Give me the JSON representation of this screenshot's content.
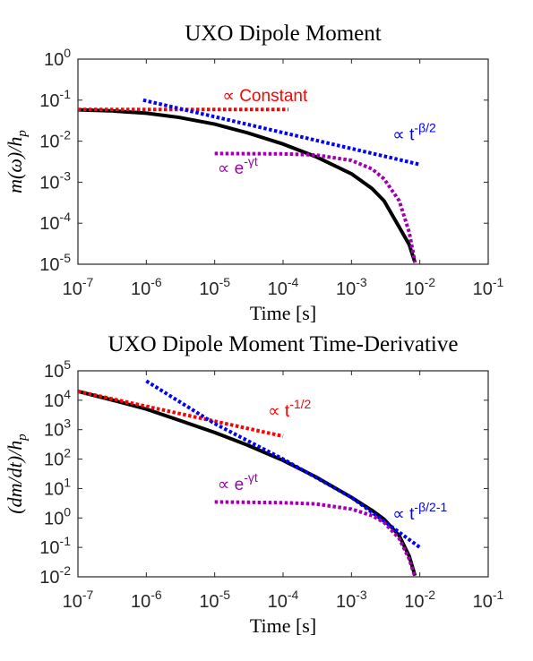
{
  "chart_data": [
    {
      "type": "line",
      "title": "UXO Dipole Moment",
      "xlabel": "Time [s]",
      "ylabel": "m(ω)/h_p",
      "xscale": "log",
      "yscale": "log",
      "xlim": [
        1e-07,
        0.1
      ],
      "ylim": [
        1e-05,
        1
      ],
      "grid": false,
      "x_ticks": [
        1e-07,
        1e-06,
        1e-05,
        0.0001,
        0.001,
        0.01,
        0.1
      ],
      "x_tick_labels": [
        [
          "10",
          "-7"
        ],
        [
          "10",
          "-6"
        ],
        [
          "10",
          "-5"
        ],
        [
          "10",
          "-4"
        ],
        [
          "10",
          "-3"
        ],
        [
          "10",
          "-2"
        ],
        [
          "10",
          "-1"
        ]
      ],
      "y_ticks": [
        1e-05,
        0.0001,
        0.001,
        0.01,
        0.1,
        1
      ],
      "y_tick_labels": [
        [
          "10",
          "-5"
        ],
        [
          "10",
          "-4"
        ],
        [
          "10",
          "-3"
        ],
        [
          "10",
          "-2"
        ],
        [
          "10",
          "-1"
        ],
        [
          "10",
          "0"
        ]
      ],
      "series": [
        {
          "role": "data",
          "color": "#000000",
          "style": "solid",
          "x": [
            1e-07,
            3e-07,
            1e-06,
            3e-06,
            1e-05,
            3e-05,
            0.0001,
            0.0003,
            0.001,
            0.002,
            0.003,
            0.005,
            0.007,
            0.0085
          ],
          "y": [
            0.058,
            0.055,
            0.048,
            0.038,
            0.026,
            0.016,
            0.0085,
            0.0042,
            0.0016,
            0.0007,
            0.00035,
            8e-05,
            3e-05,
            1.1e-05
          ]
        },
        {
          "role": "fit",
          "color": "#ff0000",
          "style": "dotted",
          "x": [
            1e-07,
            0.00012
          ],
          "y": [
            0.059,
            0.059
          ]
        },
        {
          "role": "fit",
          "color": "#0000ff",
          "style": "dotted",
          "x": [
            9e-07,
            0.01
          ],
          "y": [
            0.1,
            0.0027
          ]
        },
        {
          "role": "fit",
          "color": "#a000b0",
          "style": "dotted",
          "x": [
            1e-05,
            0.0001,
            0.0003,
            0.001,
            0.002,
            0.003,
            0.005,
            0.007,
            0.0085
          ],
          "y": [
            0.005,
            0.0049,
            0.0046,
            0.0034,
            0.0021,
            0.0012,
            0.00035,
            6e-05,
            1.1e-05
          ]
        }
      ],
      "annotations": [
        {
          "base": "∝ Constant",
          "sup": "",
          "color": "#ff0000",
          "x": 1.3e-05,
          "y": 0.095
        },
        {
          "base": "∝ t",
          "sup": "-β/2",
          "color": "#0000ff",
          "x": 0.004,
          "y": 0.0105
        },
        {
          "base": "∝ e",
          "sup": "-γt",
          "color": "#a000b0",
          "x": 1.1e-05,
          "y": 0.0016
        }
      ]
    },
    {
      "type": "line",
      "title": "UXO Dipole Moment Time-Derivative",
      "xlabel": "Time [s]",
      "ylabel": "(dm/dt)/h_p",
      "xscale": "log",
      "yscale": "log",
      "xlim": [
        1e-07,
        0.1
      ],
      "ylim": [
        0.01,
        100000.0
      ],
      "grid": false,
      "x_ticks": [
        1e-07,
        1e-06,
        1e-05,
        0.0001,
        0.001,
        0.01,
        0.1
      ],
      "x_tick_labels": [
        [
          "10",
          "-7"
        ],
        [
          "10",
          "-6"
        ],
        [
          "10",
          "-5"
        ],
        [
          "10",
          "-4"
        ],
        [
          "10",
          "-3"
        ],
        [
          "10",
          "-2"
        ],
        [
          "10",
          "-1"
        ]
      ],
      "y_ticks": [
        0.01,
        0.1,
        1,
        10,
        100,
        1000.0,
        10000.0,
        100000.0
      ],
      "y_tick_labels": [
        [
          "10",
          "-2"
        ],
        [
          "10",
          "-1"
        ],
        [
          "10",
          "0"
        ],
        [
          "10",
          "1"
        ],
        [
          "10",
          "2"
        ],
        [
          "10",
          "3"
        ],
        [
          "10",
          "4"
        ],
        [
          "10",
          "5"
        ]
      ],
      "series": [
        {
          "role": "data",
          "color": "#000000",
          "style": "solid",
          "x": [
            1e-07,
            3e-07,
            1e-06,
            3e-06,
            1e-05,
            3e-05,
            0.0001,
            0.0003,
            0.001,
            0.002,
            0.003,
            0.005,
            0.007,
            0.0085
          ],
          "y": [
            20000,
            10500,
            5000,
            2100,
            800,
            300,
            90,
            25,
            5,
            1.8,
            0.9,
            0.25,
            0.05,
            0.011
          ]
        },
        {
          "role": "fit",
          "color": "#ff0000",
          "style": "dotted",
          "x": [
            1e-07,
            0.0001
          ],
          "y": [
            20000,
            600
          ]
        },
        {
          "role": "fit",
          "color": "#0000ff",
          "style": "dotted",
          "x": [
            1e-06,
            1e-05,
            0.0001,
            0.001,
            0.01
          ],
          "y": [
            45000,
            1600,
            100,
            5,
            0.1
          ]
        },
        {
          "role": "fit",
          "color": "#a000b0",
          "style": "dotted",
          "x": [
            1e-05,
            0.0001,
            0.0003,
            0.001,
            0.002,
            0.003,
            0.005,
            0.007,
            0.0085
          ],
          "y": [
            3.5,
            3.3,
            3.0,
            2.0,
            1.2,
            0.7,
            0.2,
            0.04,
            0.01
          ]
        }
      ],
      "annotations": [
        {
          "base": "∝ t",
          "sup": "-1/2",
          "color": "#ff0000",
          "x": 6e-05,
          "y": 2800
        },
        {
          "base": "∝ e",
          "sup": "-γt",
          "color": "#a000b0",
          "x": 1.1e-05,
          "y": 9
        },
        {
          "base": "∝ t",
          "sup": "-β/2-1",
          "color": "#0000ff",
          "x": 0.004,
          "y": 0.9
        }
      ]
    }
  ]
}
